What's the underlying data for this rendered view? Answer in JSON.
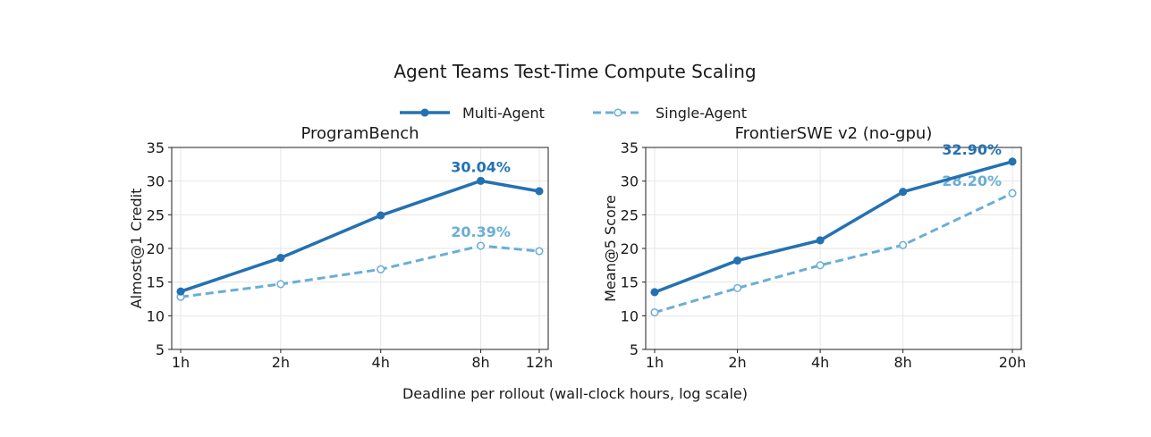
{
  "figure": {
    "title": "Agent Teams Test-Time Compute Scaling",
    "xlabel": "Deadline per rollout (wall-clock hours, log scale)"
  },
  "legend": {
    "placement": "top-center",
    "items": [
      {
        "name": "Multi-Agent",
        "color": "#2471b2",
        "style": "solid",
        "marker": "filled-circle"
      },
      {
        "name": "Single-Agent",
        "color": "#6aaed6",
        "style": "dashed",
        "marker": "open-circle"
      }
    ]
  },
  "chart_data": [
    {
      "type": "line",
      "title": "ProgramBench",
      "ylabel": "Almost@1 Credit",
      "x_scale": "log",
      "x": [
        1,
        2,
        4,
        8,
        12
      ],
      "x_tick_labels": [
        "1h",
        "2h",
        "4h",
        "8h",
        "12h"
      ],
      "ylim": [
        5,
        35
      ],
      "y_ticks": [
        5,
        10,
        15,
        20,
        25,
        30,
        35
      ],
      "grid": true,
      "series": [
        {
          "name": "Multi-Agent",
          "values": [
            13.6,
            18.6,
            24.9,
            30.04,
            28.5
          ],
          "label_value": "30.04%"
        },
        {
          "name": "Single-Agent",
          "values": [
            12.8,
            14.7,
            16.9,
            20.39,
            19.6
          ],
          "label_value": "20.39%"
        }
      ]
    },
    {
      "type": "line",
      "title": "FrontierSWE v2 (no-gpu)",
      "ylabel": "Mean@5 Score",
      "x_scale": "log",
      "x": [
        1,
        2,
        4,
        8,
        20
      ],
      "x_tick_labels": [
        "1h",
        "2h",
        "4h",
        "8h",
        "20h"
      ],
      "ylim": [
        5,
        35
      ],
      "y_ticks": [
        5,
        10,
        15,
        20,
        25,
        30,
        35
      ],
      "grid": true,
      "series": [
        {
          "name": "Multi-Agent",
          "values": [
            13.5,
            18.2,
            21.2,
            28.4,
            32.9
          ],
          "label_value": "32.90%"
        },
        {
          "name": "Single-Agent",
          "values": [
            10.5,
            14.1,
            17.5,
            20.5,
            28.2
          ],
          "label_value": "28.20%"
        }
      ]
    }
  ]
}
